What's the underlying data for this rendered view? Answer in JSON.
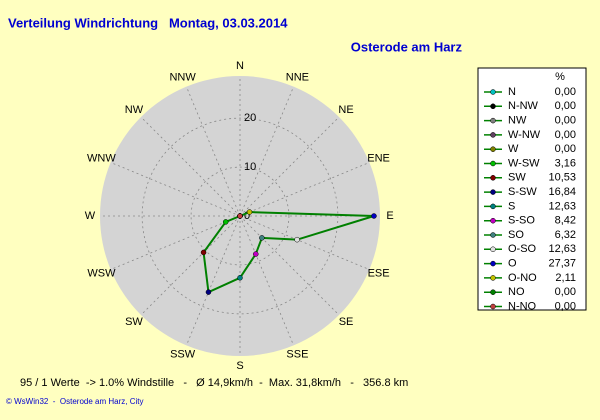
{
  "chart_data": {
    "type": "radar",
    "title": "Verteilung Windrichtung   Montag, 03.03.2014",
    "subtitle": "Osterode am Harz",
    "categories": [
      "N",
      "NNE",
      "NE",
      "ENE",
      "E",
      "ESE",
      "SE",
      "SSE",
      "S",
      "SSW",
      "SW",
      "WSW",
      "W",
      "WNW",
      "NW",
      "NNW"
    ],
    "rlim": [
      0,
      28
    ],
    "rticks": [
      0,
      10,
      20
    ],
    "grid": true,
    "line_color": "#008000",
    "legend_title": "%",
    "series": [
      {
        "name": "N",
        "color": "#00c0c0",
        "value": 0,
        "value_label": "0,00"
      },
      {
        "name": "N-NW",
        "color": "#000000",
        "value": 0,
        "value_label": "0,00"
      },
      {
        "name": "NW",
        "color": "#808080",
        "value": 0,
        "value_label": "0,00"
      },
      {
        "name": "W-NW",
        "color": "#604060",
        "value": 0,
        "value_label": "0,00"
      },
      {
        "name": "W",
        "color": "#808000",
        "value": 0,
        "value_label": "0,00"
      },
      {
        "name": "W-SW",
        "color": "#00c000",
        "value": 3.16,
        "value_label": "3,16"
      },
      {
        "name": "SW",
        "color": "#800000",
        "value": 10.53,
        "value_label": "10,53"
      },
      {
        "name": "S-SW",
        "color": "#000080",
        "value": 16.84,
        "value_label": "16,84"
      },
      {
        "name": "S",
        "color": "#008080",
        "value": 12.63,
        "value_label": "12,63"
      },
      {
        "name": "S-SO",
        "color": "#c000c0",
        "value": 8.42,
        "value_label": "8,42"
      },
      {
        "name": "SO",
        "color": "#408080",
        "value": 6.32,
        "value_label": "6,32"
      },
      {
        "name": "O-SO",
        "color": "#e0e0e0",
        "value": 12.63,
        "value_label": "12,63"
      },
      {
        "name": "O",
        "color": "#0000c0",
        "value": 27.37,
        "value_label": "27,37"
      },
      {
        "name": "O-NO",
        "color": "#c0c000",
        "value": 2.11,
        "value_label": "2,11"
      },
      {
        "name": "NO",
        "color": "#008000",
        "value": 0,
        "value_label": "0,00"
      },
      {
        "name": "N-NO",
        "color": "#c04040",
        "value": 0,
        "value_label": "0,00"
      }
    ],
    "footer": "95 / 1 Werte  -> 1.0% Windstille   -   Ø 14,9km/h  -  Max. 31,8km/h   -   356.8 km",
    "credit": "© WsWin32  -  Osterode am Harz, City"
  }
}
